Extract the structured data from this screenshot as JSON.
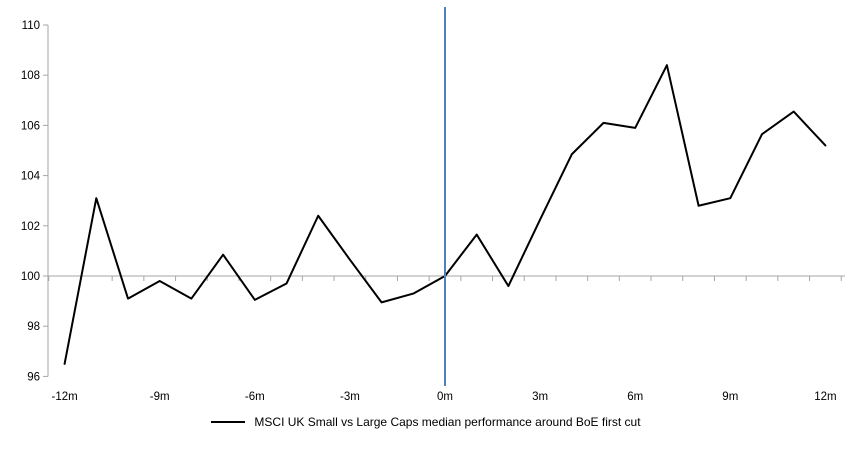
{
  "chart_data": {
    "type": "line",
    "title": "",
    "x": [
      -12,
      -11,
      -10,
      -9,
      -8,
      -7,
      -6,
      -5,
      -4,
      -3,
      -2,
      -1,
      0,
      1,
      2,
      3,
      4,
      5,
      6,
      7,
      8,
      9,
      10,
      11,
      12
    ],
    "series": [
      {
        "name": "MSCI UK Small vs Large Caps median performance around BoE first cut",
        "values": [
          96.5,
          103.1,
          99.1,
          99.8,
          99.1,
          100.85,
          99.05,
          99.7,
          102.4,
          100.65,
          98.95,
          99.3,
          100,
          101.65,
          99.6,
          102.25,
          104.85,
          106.1,
          105.9,
          108.4,
          102.8,
          103.1,
          105.65,
          106.55,
          105.2
        ]
      }
    ],
    "baseline": 100,
    "event_line_x": 0,
    "x_tick_labels": [
      "-12m",
      "-9m",
      "-6m",
      "-3m",
      "0m",
      "3m",
      "6m",
      "9m",
      "12m"
    ],
    "x_tick_positions": [
      -12,
      -9,
      -6,
      -3,
      0,
      3,
      6,
      9,
      12
    ],
    "y_ticks": [
      96,
      98,
      100,
      102,
      104,
      106,
      108,
      110
    ],
    "ylim": [
      96,
      110
    ],
    "xlim": [
      -12.5,
      12.5
    ],
    "grid": "single horizontal gridline at baseline 100 only",
    "legend_position": "bottom-center",
    "colors": {
      "series": "#000000",
      "event_line": "#4F81BD",
      "axis": "#A6A6A6",
      "tick": "#A6A6A6",
      "text": "#000000"
    }
  }
}
